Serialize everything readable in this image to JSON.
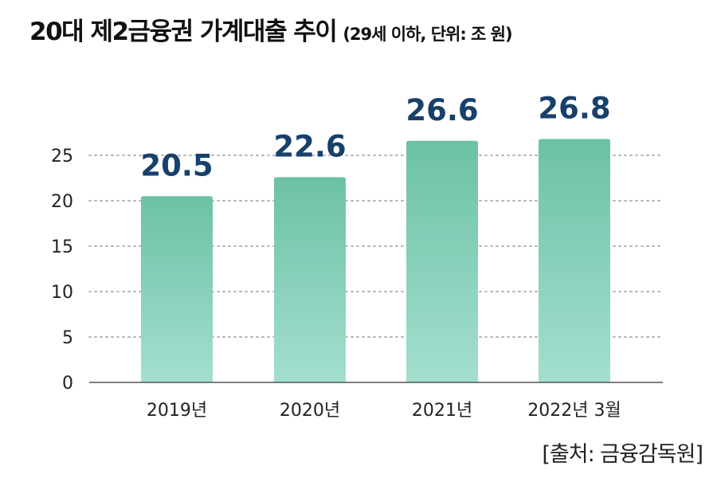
{
  "header": {
    "title": "20대 제2금융권 가계대출 추이",
    "subtitle": "(29세 이하, 단위: 조 원)"
  },
  "source": "[출처: 금융감독원]",
  "colors": {
    "bar_top": "#6cc1a6",
    "bar_bottom": "#a3dfcf",
    "value_label": "#17406a",
    "grid": "#b5b5b5",
    "axis": "#555555",
    "text": "#222222"
  },
  "chart_data": {
    "type": "bar",
    "categories": [
      "2019년",
      "2020년",
      "2021년",
      "2022년 3월"
    ],
    "values": [
      20.5,
      22.6,
      26.6,
      26.8
    ],
    "value_labels": [
      "20.5",
      "22.6",
      "26.6",
      "26.8"
    ],
    "yticks": [
      0,
      5,
      10,
      15,
      20,
      25
    ],
    "ylim": [
      0,
      27
    ],
    "grid": true,
    "xlabel": "",
    "ylabel": ""
  }
}
